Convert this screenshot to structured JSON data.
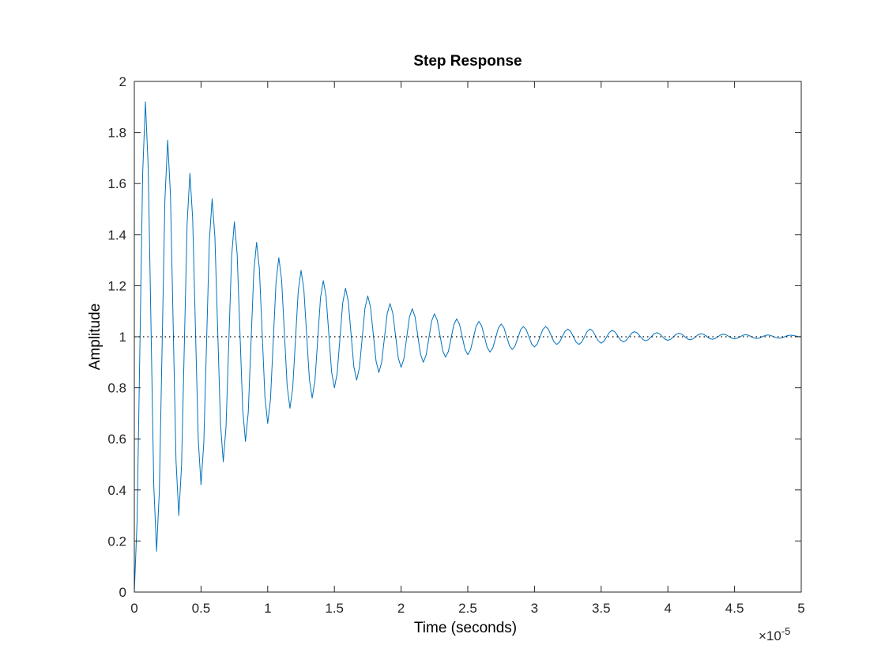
{
  "chart_data": {
    "type": "line",
    "title": "Step Response",
    "xlabel": "Time (seconds)",
    "ylabel": "Amplitude",
    "x_exponent_label": "×10",
    "x_exponent_power": "-5",
    "xlim": [
      0,
      5
    ],
    "ylim": [
      0,
      2
    ],
    "xticks": [
      "0",
      "0.5",
      "1",
      "1.5",
      "2",
      "2.5",
      "3",
      "3.5",
      "4",
      "4.5",
      "5"
    ],
    "yticks": [
      "0",
      "0.2",
      "0.4",
      "0.6",
      "0.8",
      "1",
      "1.2",
      "1.4",
      "1.6",
      "1.8",
      "2"
    ],
    "grid": false,
    "series": [
      {
        "color": "#0072bd",
        "style": "solid",
        "x": [
          0,
          0.0833,
          0.1667,
          0.25,
          0.3333,
          0.4167,
          0.5,
          0.5833,
          0.6667,
          0.75,
          0.8333,
          0.9167,
          1.0,
          1.0833,
          1.1667,
          1.25,
          1.3333,
          1.4167,
          1.5,
          1.5833,
          1.6667,
          1.75,
          1.8333,
          1.9167,
          2.0,
          2.0833,
          2.1667,
          2.25,
          2.3333,
          2.4167,
          2.5,
          2.5833,
          2.6667,
          2.75,
          2.8333,
          2.9167,
          3.0,
          3.0833,
          3.1667,
          3.25,
          3.3333,
          3.4167,
          3.5,
          3.5833,
          3.6667,
          3.75,
          3.8333,
          3.9167,
          4.0,
          4.0833,
          4.1667,
          4.25,
          4.3333,
          4.4167,
          4.5,
          4.5833,
          4.6667,
          4.75,
          4.8333,
          4.9167,
          5.0
        ],
        "y": [
          0,
          1.92,
          0.16,
          1.77,
          0.3,
          1.64,
          0.42,
          1.54,
          0.51,
          1.45,
          0.59,
          1.37,
          0.66,
          1.31,
          0.72,
          1.26,
          0.76,
          1.22,
          0.8,
          1.19,
          0.83,
          1.16,
          0.86,
          1.13,
          0.88,
          1.11,
          0.9,
          1.09,
          0.92,
          1.07,
          0.93,
          1.06,
          0.94,
          1.05,
          0.95,
          1.04,
          0.96,
          1.04,
          0.97,
          1.03,
          0.97,
          1.03,
          0.975,
          1.025,
          0.98,
          1.02,
          0.984,
          1.016,
          0.986,
          1.014,
          0.988,
          1.012,
          0.99,
          1.01,
          0.992,
          1.008,
          0.993,
          1.007,
          0.994,
          1.006,
          1.0
        ]
      },
      {
        "color": "#000000",
        "style": "dotted",
        "x": [
          0,
          5
        ],
        "y": [
          1,
          1
        ]
      }
    ]
  }
}
